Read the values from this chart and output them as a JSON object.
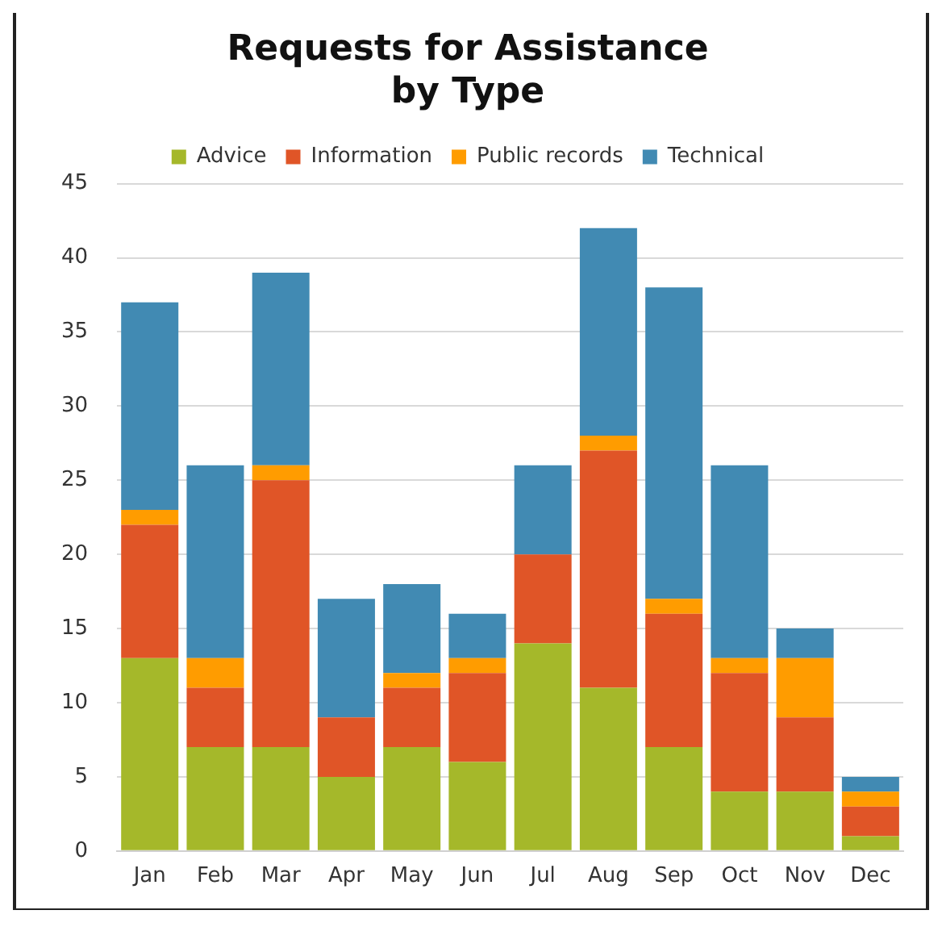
{
  "chart_data": {
    "type": "bar",
    "title": "Requests for Assistance\nby Type",
    "categories": [
      "Jan",
      "Feb",
      "Mar",
      "Apr",
      "May",
      "Jun",
      "Jul",
      "Aug",
      "Sep",
      "Oct",
      "Nov",
      "Dec"
    ],
    "stacked": true,
    "series": [
      {
        "name": "Advice",
        "color": "#a5b82a",
        "values": [
          13,
          7,
          7,
          5,
          7,
          6,
          14,
          11,
          7,
          4,
          4,
          1
        ]
      },
      {
        "name": "Information",
        "color": "#e05527",
        "values": [
          9,
          4,
          18,
          4,
          4,
          6,
          6,
          16,
          9,
          8,
          5,
          2
        ]
      },
      {
        "name": "Public records",
        "color": "#ff9c00",
        "values": [
          1,
          2,
          1,
          0,
          1,
          1,
          0,
          1,
          1,
          1,
          4,
          1
        ]
      },
      {
        "name": "Technical",
        "color": "#418ab3",
        "values": [
          14,
          13,
          13,
          8,
          6,
          3,
          6,
          14,
          21,
          13,
          2,
          1
        ]
      }
    ],
    "ylim": [
      0,
      45
    ],
    "yticks": [
      0,
      5,
      10,
      15,
      20,
      25,
      30,
      35,
      40,
      45
    ],
    "grid": "y",
    "legend": "top"
  }
}
